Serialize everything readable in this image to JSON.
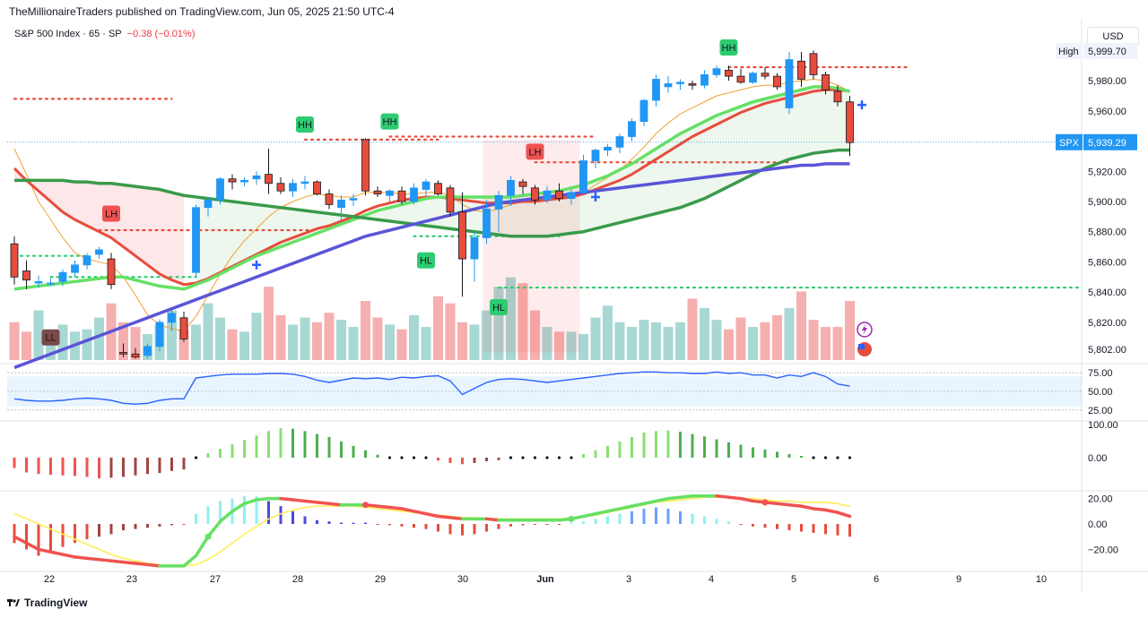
{
  "header": {
    "published": "TheMillionaireTraders published on TradingView.com, Jun 05, 2025 21:50 UTC-4",
    "symbol": "S&P 500 Index · 65 · SP",
    "change": "−0.38 (−0.01%)",
    "currency": "USD"
  },
  "footer": {
    "brand": "TradingView"
  },
  "chart_data": {
    "type": "candlestick",
    "symbol": "SPX",
    "timeframe": "65",
    "x_labels": [
      "22",
      "23",
      "27",
      "28",
      "29",
      "30",
      "Jun",
      "3",
      "4",
      "5",
      "6",
      "9",
      "10"
    ],
    "price_axis": {
      "ticks": [
        5802,
        5820,
        5840,
        5860,
        5880,
        5900,
        5920,
        5940,
        5960,
        5980
      ],
      "range": [
        5795,
        6005
      ]
    },
    "price_labels": {
      "high": {
        "label": "High",
        "value": "5,999.70"
      },
      "last": {
        "label": "SPX",
        "value": "5,939.29"
      }
    },
    "price_tick_labels": [
      "5,802.00",
      "5,820.00",
      "5,840.00",
      "5,860.00",
      "5,880.00",
      "5,900.00",
      "5,920.00",
      "5,940.00",
      "5,960.00",
      "5,980.00"
    ],
    "candles": [
      [
        5872,
        5877,
        5845,
        5850
      ],
      [
        5854,
        5861,
        5842,
        5848
      ],
      [
        5846,
        5851,
        5843,
        5847
      ],
      [
        5846,
        5849,
        5844,
        5846
      ],
      [
        5847,
        5855,
        5844,
        5853
      ],
      [
        5853,
        5861,
        5850,
        5858
      ],
      [
        5858,
        5866,
        5855,
        5864
      ],
      [
        5865,
        5870,
        5862,
        5868
      ],
      [
        5862,
        5866,
        5842,
        5845
      ],
      [
        5800,
        5806,
        5797,
        5799
      ],
      [
        5799,
        5803,
        5796,
        5797
      ],
      [
        5798,
        5806,
        5796,
        5804
      ],
      [
        5804,
        5822,
        5801,
        5820
      ],
      [
        5820,
        5828,
        5814,
        5826
      ],
      [
        5823,
        5827,
        5807,
        5809
      ],
      [
        5853,
        5898,
        5850,
        5896
      ],
      [
        5896,
        5903,
        5890,
        5901
      ],
      [
        5901,
        5916,
        5898,
        5915
      ],
      [
        5915,
        5918,
        5908,
        5913
      ],
      [
        5913,
        5916,
        5910,
        5914
      ],
      [
        5915,
        5920,
        5911,
        5917
      ],
      [
        5918,
        5935,
        5905,
        5912
      ],
      [
        5912,
        5916,
        5905,
        5907
      ],
      [
        5907,
        5915,
        5903,
        5912
      ],
      [
        5912,
        5917,
        5908,
        5913
      ],
      [
        5913,
        5914,
        5904,
        5905
      ],
      [
        5905,
        5908,
        5895,
        5898
      ],
      [
        5896,
        5904,
        5886,
        5901
      ],
      [
        5901,
        5905,
        5897,
        5902
      ],
      [
        5941,
        5942,
        5904,
        5907
      ],
      [
        5907,
        5910,
        5903,
        5905
      ],
      [
        5904,
        5908,
        5899,
        5907
      ],
      [
        5907,
        5910,
        5898,
        5900
      ],
      [
        5900,
        5912,
        5898,
        5909
      ],
      [
        5908,
        5915,
        5904,
        5913
      ],
      [
        5912,
        5914,
        5904,
        5905
      ],
      [
        5909,
        5911,
        5890,
        5893
      ],
      [
        5893,
        5906,
        5837,
        5862
      ],
      [
        5862,
        5880,
        5847,
        5876
      ],
      [
        5876,
        5901,
        5872,
        5895
      ],
      [
        5895,
        5907,
        5880,
        5904
      ],
      [
        5904,
        5917,
        5897,
        5914
      ],
      [
        5913,
        5915,
        5905,
        5910
      ],
      [
        5909,
        5911,
        5898,
        5901
      ],
      [
        5901,
        5910,
        5899,
        5907
      ],
      [
        5907,
        5912,
        5900,
        5902
      ],
      [
        5902,
        5908,
        5898,
        5906
      ],
      [
        5906,
        5931,
        5904,
        5927
      ],
      [
        5927,
        5935,
        5922,
        5934
      ],
      [
        5934,
        5938,
        5930,
        5936
      ],
      [
        5936,
        5945,
        5932,
        5943
      ],
      [
        5943,
        5955,
        5940,
        5953
      ],
      [
        5953,
        5968,
        5950,
        5967
      ],
      [
        5967,
        5984,
        5963,
        5981
      ],
      [
        5976,
        5983,
        5972,
        5978
      ],
      [
        5978,
        5981,
        5974,
        5979
      ],
      [
        5978,
        5980,
        5974,
        5977
      ],
      [
        5977,
        5987,
        5975,
        5984
      ],
      [
        5984,
        5990,
        5982,
        5988
      ],
      [
        5987,
        5990,
        5980,
        5983
      ],
      [
        5983,
        5988,
        5978,
        5979
      ],
      [
        5979,
        5986,
        5978,
        5985
      ],
      [
        5985,
        5989,
        5981,
        5983
      ],
      [
        5983,
        5985,
        5974,
        5976
      ],
      [
        5962,
        5999,
        5958,
        5994
      ],
      [
        5993,
        5999,
        5976,
        5981
      ],
      [
        5998,
        6000,
        5981,
        5984
      ],
      [
        5984,
        5986,
        5971,
        5974
      ],
      [
        5973,
        5977,
        5963,
        5966
      ],
      [
        5966,
        5970,
        5930,
        5939
      ]
    ],
    "moving_averages": [
      {
        "name": "fast",
        "color": "#f0a030",
        "values": [
          5935,
          5918,
          5900,
          5888,
          5876,
          5866,
          5862,
          5860,
          5858,
          5850,
          5838,
          5825,
          5818,
          5816,
          5814,
          5824,
          5838,
          5852,
          5864,
          5874,
          5882,
          5890,
          5896,
          5900,
          5903,
          5905,
          5904,
          5903,
          5903,
          5906,
          5906,
          5906,
          5905,
          5905,
          5906,
          5906,
          5904,
          5898,
          5894,
          5893,
          5895,
          5898,
          5900,
          5901,
          5902,
          5903,
          5903,
          5906,
          5911,
          5916,
          5921,
          5928,
          5936,
          5945,
          5952,
          5958,
          5962,
          5966,
          5970,
          5972,
          5974,
          5976,
          5977,
          5977,
          5979,
          5980,
          5981,
          5980,
          5977,
          5973
        ]
      },
      {
        "name": "red",
        "color": "#e74c3c",
        "values": [
          5922,
          5914,
          5907,
          5900,
          5893,
          5888,
          5884,
          5880,
          5876,
          5870,
          5864,
          5858,
          5852,
          5848,
          5845,
          5846,
          5849,
          5853,
          5857,
          5861,
          5865,
          5869,
          5873,
          5876,
          5879,
          5882,
          5884,
          5887,
          5890,
          5894,
          5897,
          5899,
          5901,
          5902,
          5903,
          5903,
          5902,
          5901,
          5900,
          5899,
          5899,
          5899,
          5900,
          5900,
          5901,
          5902,
          5903,
          5905,
          5908,
          5911,
          5914,
          5918,
          5923,
          5928,
          5933,
          5938,
          5943,
          5947,
          5951,
          5955,
          5959,
          5962,
          5965,
          5967,
          5969,
          5971,
          5973,
          5974,
          5974,
          5973
        ]
      },
      {
        "name": "lime",
        "color": "#66e066",
        "values": [
          5842,
          5843,
          5844,
          5845,
          5846,
          5847,
          5848,
          5849,
          5850,
          5850,
          5848,
          5846,
          5844,
          5843,
          5842,
          5845,
          5848,
          5852,
          5856,
          5860,
          5864,
          5867,
          5870,
          5873,
          5876,
          5879,
          5882,
          5885,
          5888,
          5891,
          5894,
          5896,
          5898,
          5900,
          5902,
          5903,
          5903,
          5903,
          5903,
          5903,
          5903,
          5903,
          5904,
          5905,
          5906,
          5907,
          5909,
          5911,
          5914,
          5917,
          5921,
          5925,
          5930,
          5935,
          5940,
          5945,
          5949,
          5953,
          5957,
          5960,
          5963,
          5966,
          5968,
          5970,
          5972,
          5974,
          5976,
          5976,
          5975,
          5973
        ]
      },
      {
        "name": "slow-green",
        "color": "#3a9a4a",
        "values": [
          5914,
          5914,
          5914,
          5914,
          5914,
          5913,
          5913,
          5912,
          5912,
          5911,
          5910,
          5909,
          5908,
          5906,
          5904,
          5903,
          5902,
          5901,
          5900,
          5899,
          5898,
          5897,
          5896,
          5895,
          5894,
          5893,
          5892,
          5891,
          5890,
          5889,
          5888,
          5887,
          5886,
          5885,
          5884,
          5883,
          5882,
          5881,
          5880,
          5879,
          5878,
          5877,
          5877,
          5877,
          5877,
          5878,
          5879,
          5880,
          5882,
          5884,
          5886,
          5888,
          5890,
          5892,
          5894,
          5896,
          5899,
          5902,
          5906,
          5910,
          5914,
          5918,
          5922,
          5925,
          5928,
          5930,
          5932,
          5933,
          5934,
          5934
        ]
      },
      {
        "name": "slow-blue",
        "color": "#5a55d8",
        "values": [
          5790,
          5793,
          5796,
          5799,
          5802,
          5805,
          5808,
          5811,
          5814,
          5817,
          5820,
          5823,
          5826,
          5829,
          5832,
          5835,
          5838,
          5841,
          5844,
          5847,
          5850,
          5853,
          5856,
          5859,
          5862,
          5865,
          5868,
          5871,
          5874,
          5877,
          5879,
          5881,
          5883,
          5885,
          5887,
          5889,
          5891,
          5893,
          5895,
          5897,
          5899,
          5900,
          5901,
          5902,
          5903,
          5904,
          5905,
          5906,
          5907,
          5908,
          5909,
          5910,
          5911,
          5912,
          5913,
          5914,
          5915,
          5916,
          5917,
          5918,
          5919,
          5920,
          5921,
          5922,
          5923,
          5924,
          5924,
          5925,
          5925,
          5925
        ]
      }
    ],
    "labels": [
      {
        "text": "LH",
        "bar": 8,
        "price": 5892,
        "kind": "bear"
      },
      {
        "text": "LL",
        "bar": 3,
        "price": 5810,
        "kind": "bear-dark"
      },
      {
        "text": "HH",
        "bar": 24,
        "price": 5951,
        "kind": "bull"
      },
      {
        "text": "HH",
        "bar": 31,
        "price": 5953,
        "kind": "bull"
      },
      {
        "text": "HL",
        "bar": 34,
        "price": 5861,
        "kind": "bull"
      },
      {
        "text": "HL",
        "bar": 40,
        "price": 5830,
        "kind": "bull"
      },
      {
        "text": "LH",
        "bar": 43,
        "price": 5933,
        "kind": "bear"
      },
      {
        "text": "HH",
        "bar": 59,
        "price": 6002,
        "kind": "bull"
      }
    ],
    "levels": [
      {
        "color": "#e74c3c",
        "price": 5968,
        "from": 0,
        "to": 13
      },
      {
        "color": "#e74c3c",
        "price": 5881,
        "from": 7,
        "to": 25
      },
      {
        "color": "#e74c3c",
        "price": 5941,
        "from": 24,
        "to": 35
      },
      {
        "color": "#e74c3c",
        "price": 5943,
        "from": 31,
        "to": 48
      },
      {
        "color": "#e74c3c",
        "price": 5926,
        "from": 43,
        "to": 64
      },
      {
        "color": "#e74c3c",
        "price": 5989,
        "from": 59,
        "to": 74
      },
      {
        "color": "#2ecc71",
        "price": 5864,
        "from": 0,
        "to": 6
      },
      {
        "color": "#2ecc71",
        "price": 5850,
        "from": 3,
        "to": 15
      },
      {
        "color": "#2ecc71",
        "price": 5877,
        "from": 33,
        "to": 45
      },
      {
        "color": "#2ecc71",
        "price": 5843,
        "from": 40,
        "to": 90
      }
    ],
    "volume": [
      3.2,
      2.4,
      4.2,
      2.0,
      3.0,
      2.4,
      2.6,
      3.6,
      4.8,
      3.2,
      2.8,
      2.2,
      3.0,
      4.2,
      2.6,
      3.0,
      4.8,
      3.6,
      2.6,
      2.4,
      4.0,
      6.2,
      3.8,
      3.0,
      3.6,
      3.2,
      4.0,
      3.4,
      2.8,
      5.0,
      3.6,
      3.0,
      2.6,
      3.8,
      2.8,
      5.4,
      4.8,
      3.2,
      3.0,
      4.2,
      6.2,
      7.0,
      6.5,
      4.2,
      2.8,
      2.4,
      2.4,
      2.2,
      3.6,
      4.6,
      3.2,
      2.8,
      3.4,
      3.2,
      2.8,
      3.2,
      5.2,
      4.4,
      3.4,
      2.6,
      3.6,
      2.8,
      3.2,
      3.8,
      4.4,
      5.8,
      3.4,
      2.8,
      2.8,
      5.0
    ],
    "rsi": {
      "ticks": [
        "75.00",
        "50.00",
        "25.00"
      ],
      "band": [
        30,
        70
      ],
      "values": [
        40,
        38,
        37,
        37,
        38,
        40,
        41,
        40,
        38,
        34,
        33,
        34,
        38,
        40,
        40,
        68,
        70,
        72,
        73,
        73,
        73,
        74,
        74,
        73,
        70,
        65,
        62,
        65,
        68,
        67,
        68,
        66,
        69,
        68,
        70,
        71,
        64,
        46,
        54,
        62,
        66,
        67,
        66,
        64,
        62,
        64,
        66,
        68,
        70,
        72,
        74,
        75,
        76,
        76,
        75,
        75,
        74,
        74,
        76,
        74,
        75,
        72,
        72,
        68,
        72,
        70,
        75,
        70,
        60,
        57
      ]
    },
    "histogram": {
      "ticks": [
        "100.00",
        "0.00"
      ],
      "values": [
        -35,
        -50,
        -55,
        -58,
        -60,
        -62,
        -65,
        -70,
        -68,
        -65,
        -60,
        -55,
        -52,
        -45,
        -40,
        5,
        15,
        30,
        45,
        60,
        75,
        90,
        100,
        98,
        90,
        80,
        70,
        55,
        40,
        25,
        10,
        5,
        3,
        -2,
        -5,
        -10,
        -18,
        -22,
        -18,
        -12,
        -8,
        -5,
        -3,
        2,
        3,
        4,
        5,
        12,
        25,
        40,
        55,
        70,
        85,
        90,
        92,
        88,
        80,
        72,
        62,
        52,
        44,
        35,
        28,
        20,
        12,
        6,
        2,
        3,
        1,
        -2
      ]
    },
    "oscillator": {
      "ticks": [
        "20.00",
        "0.00",
        "−20.00"
      ],
      "line": [
        -10,
        -15,
        -20,
        -22,
        -24,
        -26,
        -27,
        -28,
        -29,
        -30,
        -31,
        -32,
        -33,
        -33,
        -33,
        -25,
        -10,
        2,
        10,
        16,
        19,
        20,
        20,
        19,
        18,
        17,
        16,
        15,
        15,
        15,
        14,
        13,
        12,
        10,
        8,
        6,
        5,
        4,
        4,
        4,
        3,
        3,
        3,
        3,
        3,
        3,
        4,
        6,
        8,
        10,
        12,
        14,
        16,
        18,
        20,
        21,
        22,
        22,
        22,
        21,
        20,
        18,
        17,
        16,
        15,
        14,
        12,
        11,
        9,
        6
      ],
      "signal": [
        8,
        4,
        0,
        -4,
        -8,
        -12,
        -16,
        -20,
        -24,
        -27,
        -29,
        -31,
        -32,
        -33,
        -33,
        -32,
        -28,
        -22,
        -15,
        -8,
        -2,
        4,
        8,
        11,
        13,
        14,
        14,
        14,
        14,
        13,
        12,
        11,
        10,
        9,
        8,
        7,
        6,
        5,
        5,
        4,
        4,
        4,
        4,
        4,
        4,
        4,
        5,
        6,
        7,
        9,
        11,
        13,
        15,
        17,
        18,
        19,
        20,
        21,
        21,
        21,
        20,
        20,
        19,
        18,
        18,
        17,
        17,
        17,
        16,
        14
      ],
      "bars": [
        -15,
        -20,
        -25,
        -22,
        -18,
        -15,
        -12,
        -10,
        -8,
        -5,
        -4,
        -3,
        -2,
        -1,
        0,
        8,
        14,
        18,
        20,
        22,
        22,
        18,
        14,
        10,
        6,
        3,
        2,
        1,
        1,
        1,
        0,
        -1,
        -2,
        -3,
        -4,
        -6,
        -8,
        -9,
        -8,
        -6,
        -4,
        -2,
        -1,
        0,
        0,
        0,
        1,
        2,
        4,
        6,
        8,
        10,
        12,
        13,
        12,
        10,
        8,
        6,
        4,
        2,
        0,
        -2,
        -3,
        -4,
        -5,
        -6,
        -7,
        -8,
        -9,
        -10
      ]
    }
  }
}
